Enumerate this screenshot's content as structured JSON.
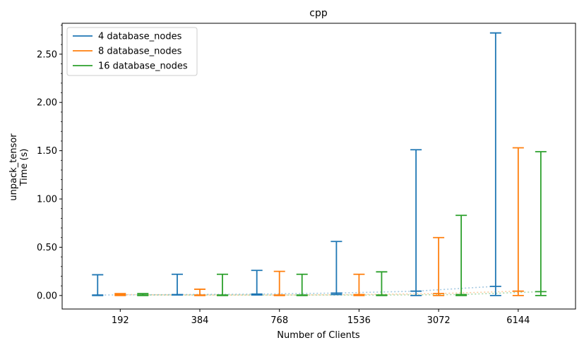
{
  "chart_data": {
    "type": "errorbar",
    "title": "cpp",
    "xlabel": "Number of Clients",
    "ylabel_lines": [
      "unpack_tensor",
      "Time (s)"
    ],
    "categories": [
      "192",
      "384",
      "768",
      "1536",
      "3072",
      "6144"
    ],
    "ylim": [
      -0.14,
      2.82
    ],
    "yticks": [
      0.0,
      0.5,
      1.0,
      1.5,
      2.0,
      2.5
    ],
    "ytick_labels": [
      "0.00",
      "0.50",
      "1.00",
      "1.50",
      "2.00",
      "2.50"
    ],
    "grid": false,
    "legend": {
      "position": "top-left"
    },
    "series": [
      {
        "name": "4 database_nodes",
        "color": "#1f77b4",
        "min": [
          0.0,
          0.005,
          0.005,
          0.01,
          0.0,
          0.0
        ],
        "max": [
          0.215,
          0.22,
          0.26,
          0.56,
          1.51,
          2.72
        ],
        "center": [
          0.005,
          0.01,
          0.015,
          0.025,
          0.045,
          0.095
        ]
      },
      {
        "name": "8 database_nodes",
        "color": "#ff7f0e",
        "min": [
          0.0,
          0.0,
          0.0,
          0.0,
          0.0,
          0.0
        ],
        "max": [
          0.02,
          0.065,
          0.25,
          0.22,
          0.6,
          1.53
        ],
        "center": [
          0.01,
          0.005,
          0.005,
          0.01,
          0.02,
          0.045
        ]
      },
      {
        "name": "16 database_nodes",
        "color": "#2ca02c",
        "min": [
          0.0,
          0.0,
          0.0,
          0.0,
          0.0,
          0.0
        ],
        "max": [
          0.02,
          0.22,
          0.22,
          0.245,
          0.83,
          1.49
        ],
        "center": [
          0.005,
          0.005,
          0.005,
          0.005,
          0.01,
          0.04
        ]
      }
    ]
  }
}
